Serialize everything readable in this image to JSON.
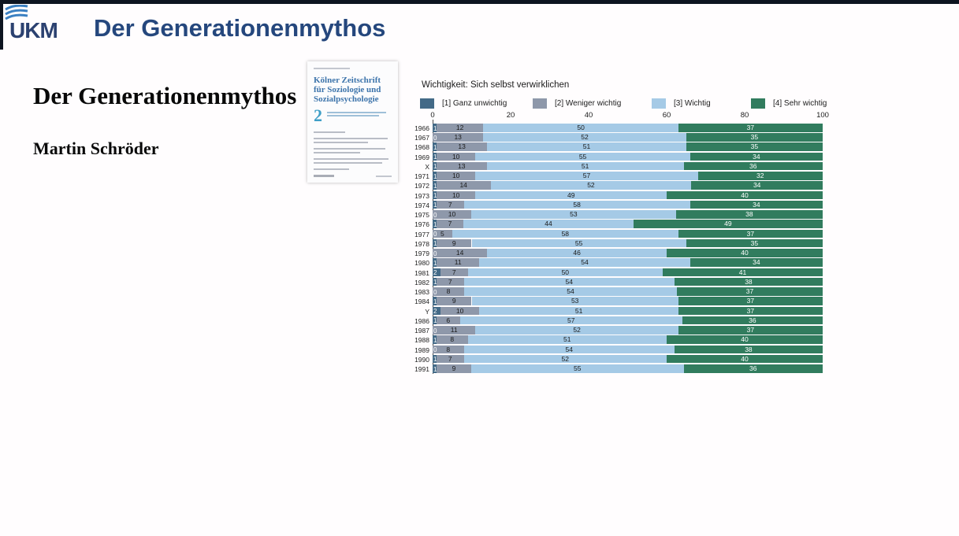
{
  "header": {
    "logo_text": "UKM",
    "title": "Der Generationenmythos"
  },
  "slide": {
    "title": "Der Generationenmythos",
    "author": "Martin Schröder"
  },
  "journal_cover": {
    "title_line1": "Kölner Zeitschrift",
    "title_line2": "für Soziologie und",
    "title_line3": "Sozialpsychologie",
    "issue_number": "2"
  },
  "colors": {
    "accent_header": "#25477d",
    "logo_wave_blue": "#3b80c2",
    "seg1": "#436a87",
    "seg2": "#8e98aa",
    "seg3": "#a5cae6",
    "seg4": "#317c5e"
  },
  "chart_data": {
    "type": "bar",
    "stacked": true,
    "orientation": "horizontal",
    "title": "Wichtigkeit: Sich selbst verwirklichen",
    "xlabel": "",
    "ylabel": "",
    "xlim": [
      0,
      100
    ],
    "x_ticks": [
      0,
      20,
      40,
      60,
      80,
      100
    ],
    "grid": false,
    "legend_position": "top",
    "categories": [
      "1966",
      "1967",
      "1968",
      "1969",
      "X",
      "1971",
      "1972",
      "1973",
      "1974",
      "1975",
      "1976",
      "1977",
      "1978",
      "1979",
      "1980",
      "1981",
      "1982",
      "1983",
      "1984",
      "Y",
      "1986",
      "1987",
      "1988",
      "1989",
      "1990",
      "1991"
    ],
    "series": [
      {
        "name": "[1] Ganz unwichtig",
        "color": "#436a87",
        "label_color": "#ffffff",
        "values": [
          1,
          0,
          1,
          1,
          1,
          1,
          1,
          1,
          1,
          0,
          1,
          0,
          1,
          0,
          1,
          2,
          1,
          0,
          1,
          2,
          1,
          0,
          1,
          0,
          1,
          1
        ]
      },
      {
        "name": "[2] Weniger wichtig",
        "color": "#8e98aa",
        "label_color": "#1a1a1a",
        "values": [
          12,
          13,
          13,
          10,
          13,
          10,
          14,
          10,
          7,
          10,
          7,
          5,
          9,
          14,
          11,
          7,
          7,
          8,
          9,
          10,
          6,
          11,
          8,
          8,
          7,
          9
        ]
      },
      {
        "name": "[3] Wichtig",
        "color": "#a5cae6",
        "label_color": "#1a1a1a",
        "values": [
          50,
          52,
          51,
          55,
          51,
          57,
          52,
          49,
          58,
          53,
          44,
          58,
          55,
          46,
          54,
          50,
          54,
          54,
          53,
          51,
          57,
          52,
          51,
          54,
          52,
          55
        ]
      },
      {
        "name": "[4] Sehr wichtig",
        "color": "#317c5e",
        "label_color": "#ffffff",
        "values": [
          37,
          35,
          35,
          34,
          36,
          32,
          34,
          40,
          34,
          38,
          49,
          37,
          35,
          40,
          34,
          41,
          38,
          37,
          37,
          37,
          36,
          37,
          40,
          38,
          40,
          36
        ]
      }
    ]
  }
}
